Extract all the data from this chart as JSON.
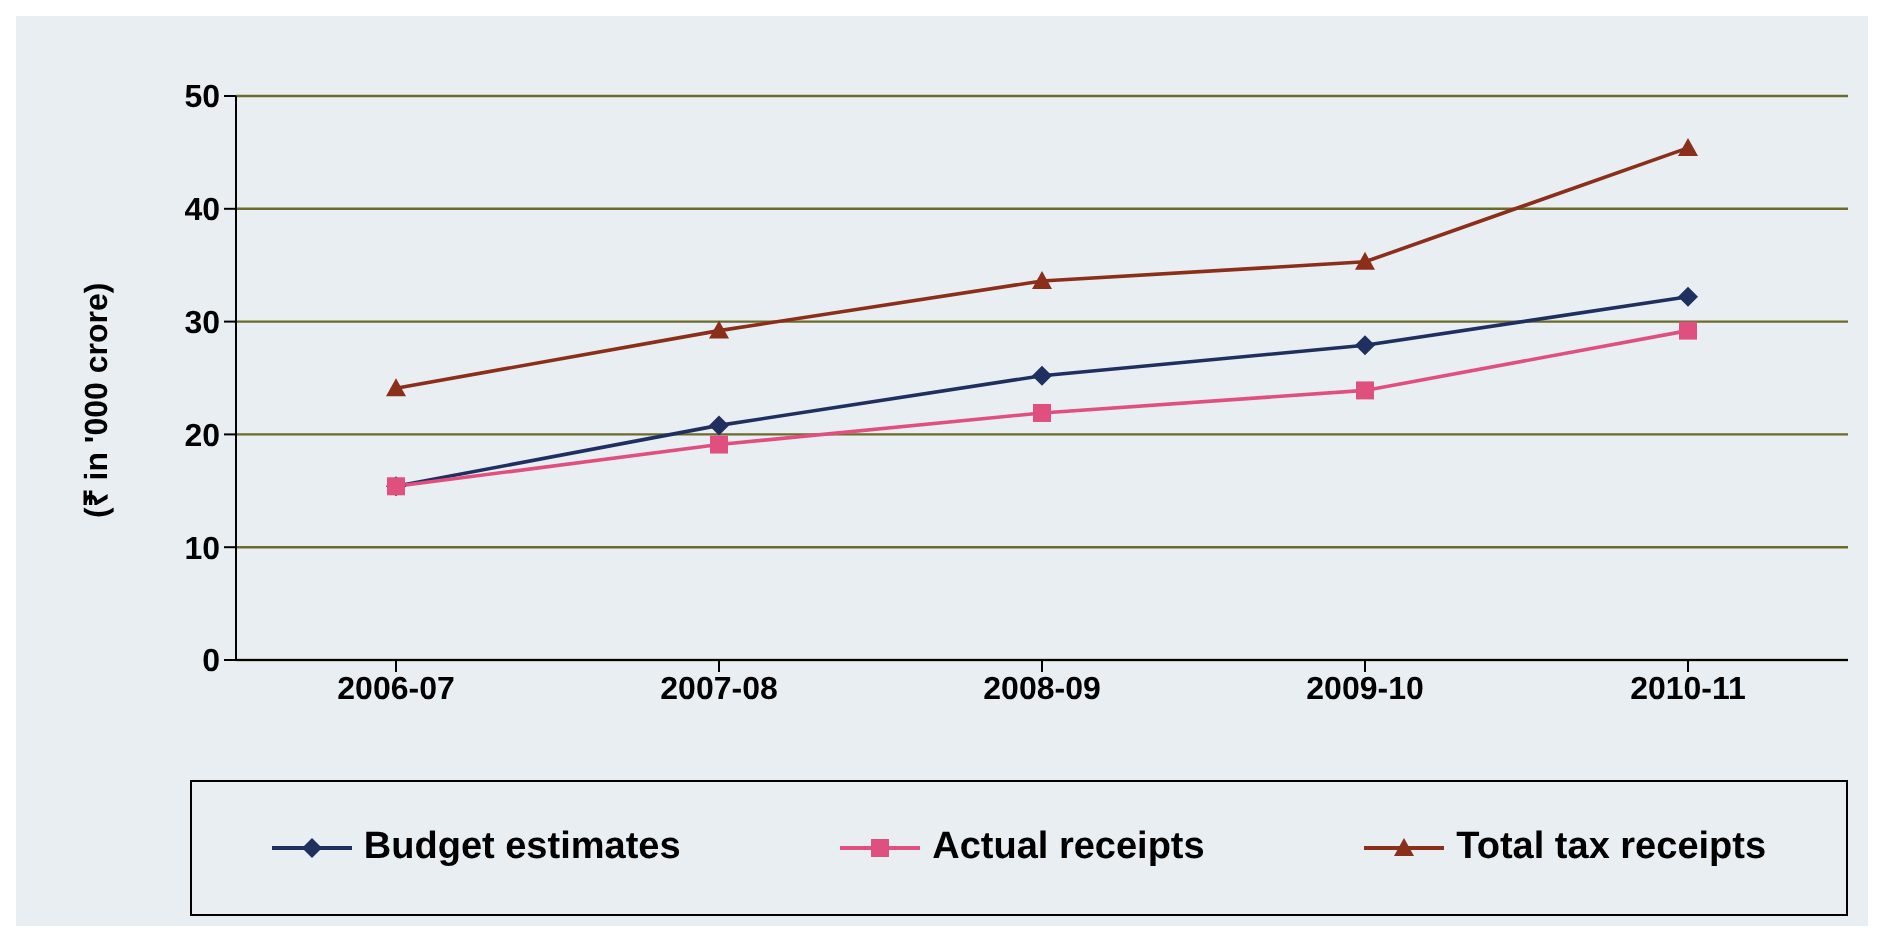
{
  "chart_data": {
    "type": "line",
    "ylabel": "(₹ in '000 crore)",
    "categories": [
      "2006-07",
      "2007-08",
      "2008-09",
      "2009-10",
      "2010-11"
    ],
    "series": [
      {
        "name": "Budget estimates",
        "color": "#1f2f5f",
        "marker": "diamond",
        "values": [
          15.4,
          20.8,
          25.2,
          27.9,
          32.2
        ]
      },
      {
        "name": "Actual receipts",
        "color": "#e0507f",
        "marker": "square",
        "values": [
          15.4,
          19.1,
          21.9,
          23.9,
          29.2
        ]
      },
      {
        "name": "Total tax receipts",
        "color": "#8b2e1a",
        "marker": "triangle",
        "values": [
          24.1,
          29.2,
          33.6,
          35.3,
          45.4
        ]
      }
    ],
    "ylim": [
      0,
      50
    ],
    "yticks": [
      0,
      10,
      20,
      30,
      40,
      50
    ],
    "grid": "y",
    "legend": "bottom",
    "line_style": "solid"
  }
}
